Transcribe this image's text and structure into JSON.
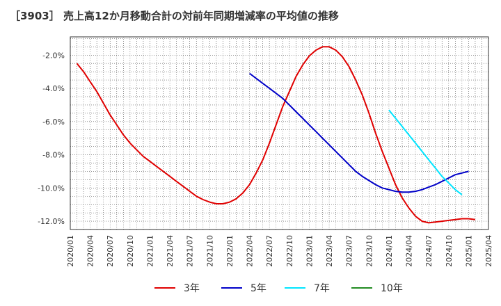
{
  "chart_data": {
    "type": "line",
    "title": "［3903］ 売上高12か月移動合計の対前年同期増減率の平均値の推移",
    "xlabel": "",
    "ylabel": "",
    "ylim": [
      -12.5,
      -0.9
    ],
    "yticks": [
      -2.0,
      -4.0,
      -6.0,
      -8.0,
      -10.0,
      -12.0
    ],
    "ytick_labels": [
      "-2.0%",
      "-4.0%",
      "-6.0%",
      "-8.0%",
      "-10.0%",
      "-12.0%"
    ],
    "xtick_labels": [
      "2020/01",
      "2020/04",
      "2020/07",
      "2020/10",
      "2021/01",
      "2021/04",
      "2021/07",
      "2021/10",
      "2022/01",
      "2022/04",
      "2022/07",
      "2022/10",
      "2023/01",
      "2023/04",
      "2023/07",
      "2023/10",
      "2024/01",
      "2024/04",
      "2024/07",
      "2024/10",
      "2025/01",
      "2025/04"
    ],
    "grid": true,
    "legend_position": "bottom",
    "series": [
      {
        "name": "3年",
        "color": "#e00000",
        "points": [
          [
            "2020/02",
            -2.5
          ],
          [
            "2020/03",
            -3.0
          ],
          [
            "2020/04",
            -3.6
          ],
          [
            "2020/05",
            -4.2
          ],
          [
            "2020/06",
            -4.9
          ],
          [
            "2020/07",
            -5.6
          ],
          [
            "2020/08",
            -6.2
          ],
          [
            "2020/09",
            -6.8
          ],
          [
            "2020/10",
            -7.3
          ],
          [
            "2020/11",
            -7.7
          ],
          [
            "2020/12",
            -8.1
          ],
          [
            "2021/01",
            -8.4
          ],
          [
            "2021/02",
            -8.7
          ],
          [
            "2021/03",
            -9.0
          ],
          [
            "2021/04",
            -9.3
          ],
          [
            "2021/05",
            -9.6
          ],
          [
            "2021/06",
            -9.9
          ],
          [
            "2021/07",
            -10.2
          ],
          [
            "2021/08",
            -10.5
          ],
          [
            "2021/09",
            -10.7
          ],
          [
            "2021/10",
            -10.85
          ],
          [
            "2021/11",
            -10.95
          ],
          [
            "2021/12",
            -10.95
          ],
          [
            "2022/01",
            -10.85
          ],
          [
            "2022/02",
            -10.65
          ],
          [
            "2022/03",
            -10.3
          ],
          [
            "2022/04",
            -9.8
          ],
          [
            "2022/05",
            -9.1
          ],
          [
            "2022/06",
            -8.3
          ],
          [
            "2022/07",
            -7.3
          ],
          [
            "2022/08",
            -6.2
          ],
          [
            "2022/09",
            -5.1
          ],
          [
            "2022/10",
            -4.2
          ],
          [
            "2022/11",
            -3.3
          ],
          [
            "2022/12",
            -2.6
          ],
          [
            "2023/01",
            -2.05
          ],
          [
            "2023/02",
            -1.7
          ],
          [
            "2023/03",
            -1.5
          ],
          [
            "2023/04",
            -1.5
          ],
          [
            "2023/05",
            -1.7
          ],
          [
            "2023/06",
            -2.1
          ],
          [
            "2023/07",
            -2.7
          ],
          [
            "2023/08",
            -3.5
          ],
          [
            "2023/09",
            -4.4
          ],
          [
            "2023/10",
            -5.5
          ],
          [
            "2023/11",
            -6.7
          ],
          [
            "2023/12",
            -7.8
          ],
          [
            "2024/01",
            -8.8
          ],
          [
            "2024/02",
            -9.8
          ],
          [
            "2024/03",
            -10.6
          ],
          [
            "2024/04",
            -11.2
          ],
          [
            "2024/05",
            -11.7
          ],
          [
            "2024/06",
            -12.0
          ],
          [
            "2024/07",
            -12.1
          ],
          [
            "2024/08",
            -12.05
          ],
          [
            "2024/09",
            -12.0
          ],
          [
            "2024/10",
            -11.95
          ],
          [
            "2024/11",
            -11.9
          ],
          [
            "2024/12",
            -11.85
          ],
          [
            "2025/01",
            -11.85
          ],
          [
            "2025/02",
            -11.9
          ]
        ]
      },
      {
        "name": "5年",
        "color": "#0000c8",
        "points": [
          [
            "2022/04",
            -3.1
          ],
          [
            "2022/05",
            -3.4
          ],
          [
            "2022/06",
            -3.7
          ],
          [
            "2022/07",
            -4.0
          ],
          [
            "2022/08",
            -4.3
          ],
          [
            "2022/09",
            -4.6
          ],
          [
            "2022/10",
            -5.0
          ],
          [
            "2022/11",
            -5.4
          ],
          [
            "2022/12",
            -5.8
          ],
          [
            "2023/01",
            -6.2
          ],
          [
            "2023/02",
            -6.6
          ],
          [
            "2023/03",
            -7.0
          ],
          [
            "2023/04",
            -7.4
          ],
          [
            "2023/05",
            -7.8
          ],
          [
            "2023/06",
            -8.2
          ],
          [
            "2023/07",
            -8.6
          ],
          [
            "2023/08",
            -9.0
          ],
          [
            "2023/09",
            -9.3
          ],
          [
            "2023/10",
            -9.55
          ],
          [
            "2023/11",
            -9.8
          ],
          [
            "2023/12",
            -10.0
          ],
          [
            "2024/01",
            -10.1
          ],
          [
            "2024/02",
            -10.2
          ],
          [
            "2024/03",
            -10.25
          ],
          [
            "2024/04",
            -10.25
          ],
          [
            "2024/05",
            -10.2
          ],
          [
            "2024/06",
            -10.1
          ],
          [
            "2024/07",
            -9.95
          ],
          [
            "2024/08",
            -9.8
          ],
          [
            "2024/09",
            -9.6
          ],
          [
            "2024/10",
            -9.4
          ],
          [
            "2024/11",
            -9.2
          ],
          [
            "2024/12",
            -9.1
          ],
          [
            "2025/01",
            -9.0
          ]
        ]
      },
      {
        "name": "7年",
        "color": "#00e5ff",
        "points": [
          [
            "2024/01",
            -5.3
          ],
          [
            "2024/02",
            -5.8
          ],
          [
            "2024/03",
            -6.3
          ],
          [
            "2024/04",
            -6.8
          ],
          [
            "2024/05",
            -7.3
          ],
          [
            "2024/06",
            -7.8
          ],
          [
            "2024/07",
            -8.3
          ],
          [
            "2024/08",
            -8.8
          ],
          [
            "2024/09",
            -9.3
          ],
          [
            "2024/10",
            -9.7
          ],
          [
            "2024/11",
            -10.1
          ],
          [
            "2024/12",
            -10.4
          ]
        ]
      },
      {
        "name": "10年",
        "color": "#228b22",
        "points": []
      }
    ]
  }
}
